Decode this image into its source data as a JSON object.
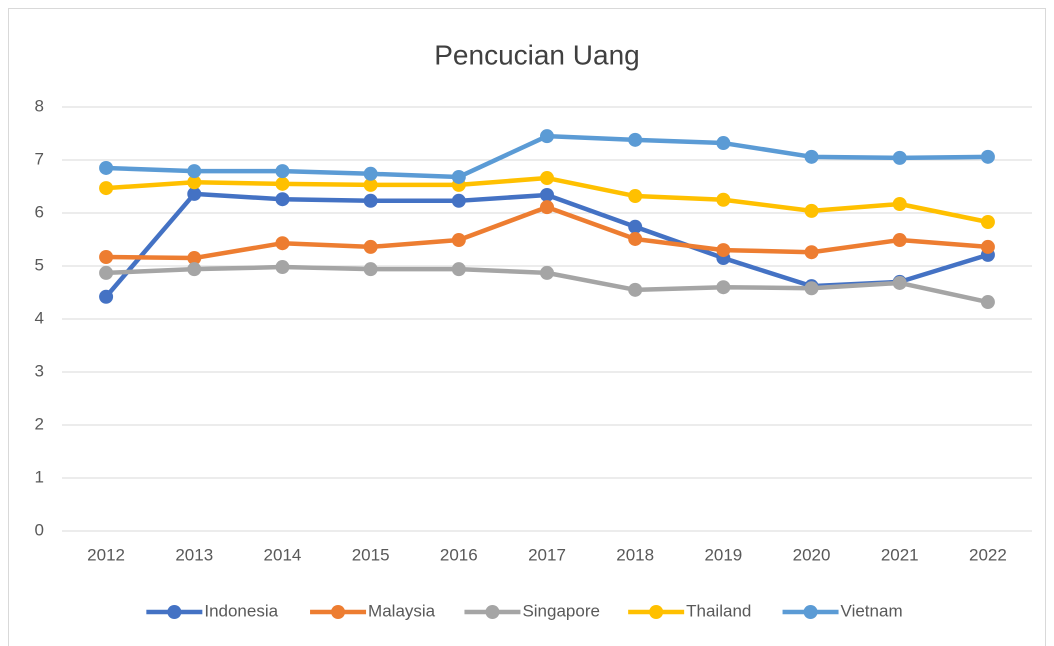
{
  "chart_data": {
    "type": "line",
    "title": "Pencucian Uang",
    "categories": [
      "2012",
      "2013",
      "2014",
      "2015",
      "2016",
      "2017",
      "2018",
      "2019",
      "2020",
      "2021",
      "2022"
    ],
    "series": [
      {
        "name": "Indonesia",
        "color": "#4472c4",
        "values": [
          4.42,
          6.36,
          6.26,
          6.23,
          6.23,
          6.34,
          5.74,
          5.15,
          4.62,
          4.7,
          5.21
        ]
      },
      {
        "name": "Malaysia",
        "color": "#ed7d31",
        "values": [
          5.17,
          5.15,
          5.43,
          5.36,
          5.49,
          6.11,
          5.51,
          5.3,
          5.26,
          5.49,
          5.36
        ]
      },
      {
        "name": "Singapore",
        "color": "#a5a5a5",
        "values": [
          4.87,
          4.94,
          4.98,
          4.94,
          4.94,
          4.87,
          4.55,
          4.6,
          4.58,
          4.68,
          4.32
        ]
      },
      {
        "name": "Thailand",
        "color": "#ffc000",
        "values": [
          6.47,
          6.58,
          6.55,
          6.53,
          6.53,
          6.66,
          6.32,
          6.25,
          6.04,
          6.17,
          5.83
        ]
      },
      {
        "name": "Vietnam",
        "color": "#5b9bd5",
        "values": [
          6.85,
          6.79,
          6.79,
          6.74,
          6.68,
          7.45,
          7.38,
          7.32,
          7.06,
          7.04,
          7.06
        ]
      }
    ],
    "ylim": [
      0,
      8
    ],
    "yticks": [
      0,
      1,
      2,
      3,
      4,
      5,
      6,
      7,
      8
    ],
    "grid": true,
    "legend": "bottom"
  }
}
